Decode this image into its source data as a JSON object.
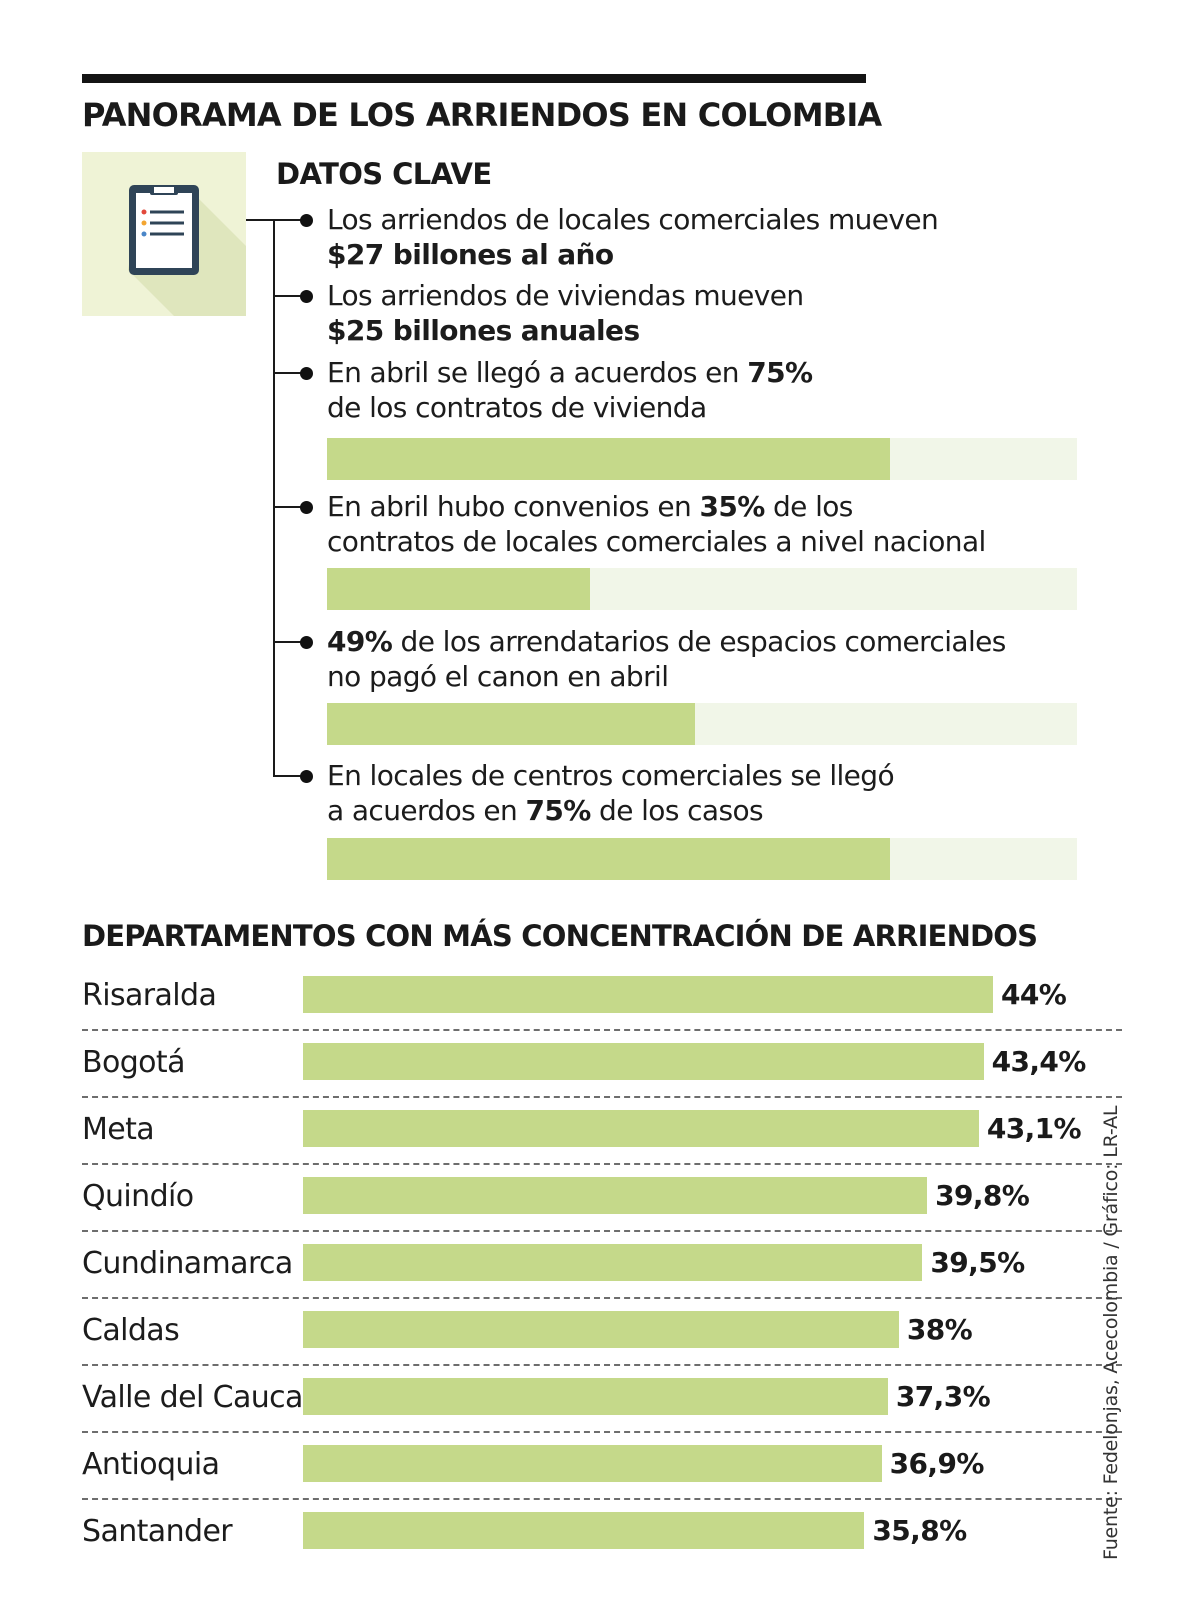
{
  "title": "PANORAMA DE LOS ARRIENDOS EN COLOMBIA",
  "key_data": {
    "heading": "DATOS CLAVE",
    "icon": "clipboard-icon",
    "facts": [
      {
        "parts": [
          {
            "t": "Los arriendos de locales comerciales mueven",
            "b": false
          },
          {
            "br": true
          },
          {
            "t": "$27 billones al año",
            "b": true
          }
        ]
      },
      {
        "parts": [
          {
            "t": "Los arriendos de viviendas mueven",
            "b": false
          },
          {
            "br": true
          },
          {
            "t": "$25 billones anuales",
            "b": true
          }
        ]
      },
      {
        "parts": [
          {
            "t": "En abril se llegó a acuerdos en ",
            "b": false
          },
          {
            "t": "75%",
            "b": true
          },
          {
            "br": true
          },
          {
            "t": "de los contratos de vivienda",
            "b": false
          }
        ],
        "percent": 75
      },
      {
        "parts": [
          {
            "t": "En abril hubo convenios en ",
            "b": false
          },
          {
            "t": "35%",
            "b": true
          },
          {
            "t": " de los",
            "b": false
          },
          {
            "br": true
          },
          {
            "t": "contratos de locales comerciales a nivel nacional",
            "b": false
          }
        ],
        "percent": 35
      },
      {
        "parts": [
          {
            "t": "49%",
            "b": true
          },
          {
            "t": " de los arrendatarios de espacios comerciales",
            "b": false
          },
          {
            "br": true
          },
          {
            "t": "no pagó el canon en abril",
            "b": false
          }
        ],
        "percent": 49
      },
      {
        "parts": [
          {
            "t": "En locales de centros comerciales se llegó",
            "b": false
          },
          {
            "br": true
          },
          {
            "t": "a acuerdos en ",
            "b": false
          },
          {
            "t": "75%",
            "b": true
          },
          {
            "t": " de los casos",
            "b": false
          }
        ],
        "percent": 75
      }
    ]
  },
  "chart_data": {
    "type": "bar",
    "orientation": "horizontal",
    "title": "DEPARTAMENTOS CON MÁS CONCENTRACIÓN DE ARRIENDOS",
    "unit": "%",
    "categories": [
      "Risaralda",
      "Bogotá",
      "Meta",
      "Quindío",
      "Cundinamarca",
      "Caldas",
      "Valle del Cauca",
      "Antioquia",
      "Santander"
    ],
    "values": [
      44,
      43.4,
      43.1,
      39.8,
      39.5,
      38,
      37.3,
      36.9,
      35.8
    ],
    "value_labels": [
      "44%",
      "43,4%",
      "43,1%",
      "39,8%",
      "39,5%",
      "38%",
      "37,3%",
      "36,9%",
      "35,8%"
    ],
    "xlim": [
      0,
      44
    ],
    "grid": false
  },
  "colors": {
    "bar": "#c5d98a",
    "track": "#f1f6e8",
    "text": "#1a1a1a",
    "icon_bg": "#eff3d6",
    "clipboard": "#2f4457"
  },
  "source": "Fuente: Fedelonjas, Acecolombia / Gráfico: LR-AL"
}
